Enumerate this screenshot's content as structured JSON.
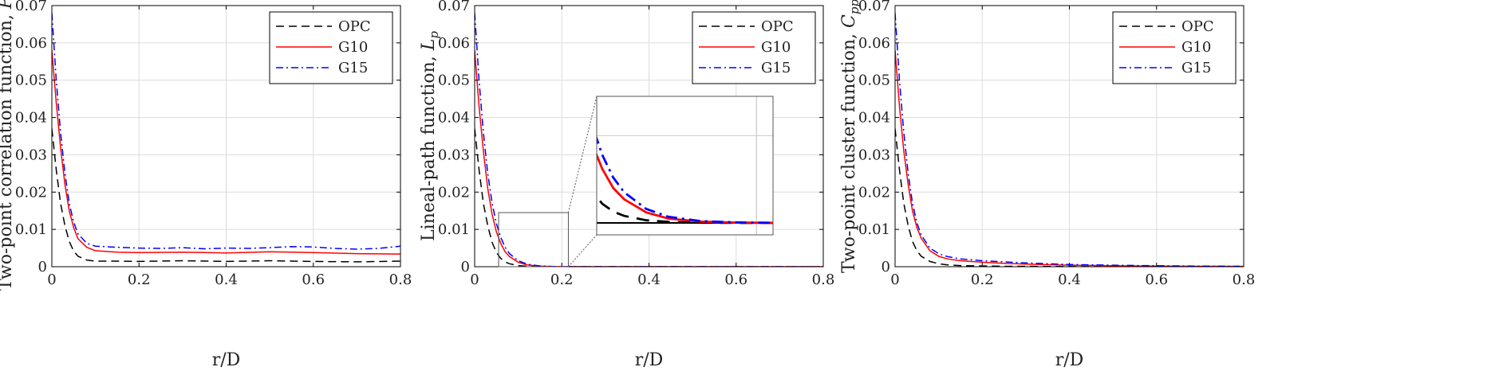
{
  "chart_data": [
    {
      "type": "line",
      "id": "left",
      "xlabel": "r/D",
      "ylabel": "Two-point correlation function, ",
      "ylabel_symbol": "P",
      "ylabel_subscript": "pp",
      "xlim": [
        0,
        0.8
      ],
      "ylim": [
        0,
        0.07
      ],
      "xticks": [
        0,
        0.2,
        0.4,
        0.6,
        0.8
      ],
      "xtick_labels": [
        "0",
        "0.2",
        "0.4",
        "0.6",
        "0.8"
      ],
      "yticks": [
        0,
        0.01,
        0.02,
        0.03,
        0.04,
        0.05,
        0.06,
        0.07
      ],
      "ytick_labels": [
        "0",
        "0.01",
        "0.02",
        "0.03",
        "0.04",
        "0.05",
        "0.06",
        "0.07"
      ],
      "grid": true,
      "legend": "top-right",
      "series": [
        {
          "name": "OPC",
          "color": "#000000",
          "dash": "dashed",
          "x": [
            0,
            0.01,
            0.02,
            0.03,
            0.04,
            0.05,
            0.06,
            0.08,
            0.1,
            0.15,
            0.2,
            0.3,
            0.4,
            0.5,
            0.6,
            0.7,
            0.8
          ],
          "y": [
            0.037,
            0.026,
            0.017,
            0.011,
            0.0068,
            0.0042,
            0.0028,
            0.0018,
            0.0015,
            0.0015,
            0.0014,
            0.0016,
            0.0014,
            0.0016,
            0.0014,
            0.0013,
            0.0015
          ]
        },
        {
          "name": "G10",
          "color": "#ff0000",
          "dash": "solid",
          "x": [
            0,
            0.01,
            0.02,
            0.03,
            0.04,
            0.05,
            0.06,
            0.08,
            0.1,
            0.15,
            0.2,
            0.3,
            0.4,
            0.5,
            0.6,
            0.7,
            0.8
          ],
          "y": [
            0.058,
            0.044,
            0.032,
            0.022,
            0.015,
            0.0105,
            0.0075,
            0.0052,
            0.0043,
            0.0039,
            0.0038,
            0.0039,
            0.0037,
            0.004,
            0.0038,
            0.0035,
            0.0034
          ]
        },
        {
          "name": "G15",
          "color": "#0000ff",
          "dash": "dashdot",
          "x": [
            0,
            0.01,
            0.02,
            0.03,
            0.04,
            0.05,
            0.06,
            0.08,
            0.1,
            0.15,
            0.2,
            0.25,
            0.3,
            0.35,
            0.4,
            0.45,
            0.5,
            0.55,
            0.6,
            0.65,
            0.7,
            0.75,
            0.8
          ],
          "y": [
            0.068,
            0.05,
            0.036,
            0.025,
            0.017,
            0.012,
            0.0088,
            0.0063,
            0.0055,
            0.0052,
            0.005,
            0.0049,
            0.0051,
            0.0048,
            0.005,
            0.0049,
            0.0051,
            0.0054,
            0.0053,
            0.0049,
            0.0047,
            0.0049,
            0.0055
          ]
        }
      ]
    },
    {
      "type": "line",
      "id": "middle",
      "xlabel": "r/D",
      "ylabel": "Lineal-path function, ",
      "ylabel_symbol": "L",
      "ylabel_subscript": "p",
      "xlim": [
        0,
        0.8
      ],
      "ylim": [
        0,
        0.07
      ],
      "xticks": [
        0,
        0.2,
        0.4,
        0.6,
        0.8
      ],
      "xtick_labels": [
        "0",
        "0.2",
        "0.4",
        "0.6",
        "0.8"
      ],
      "yticks": [
        0,
        0.01,
        0.02,
        0.03,
        0.04,
        0.05,
        0.06,
        0.07
      ],
      "ytick_labels": [
        "0",
        "0.01",
        "0.02",
        "0.03",
        "0.04",
        "0.05",
        "0.06",
        "0.07"
      ],
      "grid": true,
      "legend": "top-right",
      "inset": {
        "x_range": [
          0.055,
          0.215
        ],
        "y_range": [
          0,
          0.0145
        ]
      },
      "series": [
        {
          "name": "OPC",
          "color": "#000000",
          "dash": "dashed",
          "x": [
            0,
            0.01,
            0.02,
            0.03,
            0.04,
            0.05,
            0.06,
            0.07,
            0.08,
            0.1,
            0.12,
            0.15,
            0.18,
            0.2,
            0.25,
            0.3,
            0.4,
            0.5,
            0.6,
            0.7,
            0.8
          ],
          "y": [
            0.037,
            0.026,
            0.017,
            0.011,
            0.0065,
            0.0038,
            0.0022,
            0.0013,
            0.0008,
            0.0003,
            0.00012,
            3e-05,
            1e-05,
            0,
            0,
            0,
            0,
            0,
            0,
            0,
            0
          ]
        },
        {
          "name": "G10",
          "color": "#ff0000",
          "dash": "solid",
          "x": [
            0,
            0.01,
            0.02,
            0.03,
            0.04,
            0.05,
            0.06,
            0.07,
            0.08,
            0.1,
            0.12,
            0.15,
            0.18,
            0.2,
            0.25,
            0.3,
            0.4,
            0.5,
            0.6,
            0.7,
            0.8
          ],
          "y": [
            0.058,
            0.043,
            0.031,
            0.021,
            0.014,
            0.0093,
            0.0062,
            0.004,
            0.0027,
            0.0012,
            0.0005,
            0.00015,
            5e-05,
            2e-05,
            0,
            0,
            0,
            0,
            0,
            0,
            0
          ]
        },
        {
          "name": "G15",
          "color": "#0000ff",
          "dash": "dashdot",
          "x": [
            0,
            0.01,
            0.02,
            0.03,
            0.04,
            0.05,
            0.06,
            0.07,
            0.08,
            0.1,
            0.12,
            0.15,
            0.18,
            0.2,
            0.25,
            0.3,
            0.4,
            0.5,
            0.6,
            0.7,
            0.8
          ],
          "y": [
            0.068,
            0.05,
            0.036,
            0.025,
            0.017,
            0.0115,
            0.0078,
            0.0052,
            0.0035,
            0.0016,
            0.0007,
            0.0002,
            7e-05,
            3e-05,
            0,
            0,
            0,
            0,
            0,
            0,
            0
          ]
        }
      ]
    },
    {
      "type": "line",
      "id": "right",
      "xlabel": "r/D",
      "ylabel": "Two-point cluster function, ",
      "ylabel_symbol": "C",
      "ylabel_subscript": "pp",
      "xlim": [
        0,
        0.8
      ],
      "ylim": [
        0,
        0.07
      ],
      "xticks": [
        0,
        0.2,
        0.4,
        0.6,
        0.8
      ],
      "xtick_labels": [
        "0",
        "0.2",
        "0.4",
        "0.6",
        "0.8"
      ],
      "yticks": [
        0,
        0.01,
        0.02,
        0.03,
        0.04,
        0.05,
        0.06,
        0.07
      ],
      "ytick_labels": [
        "0",
        "0.01",
        "0.02",
        "0.03",
        "0.04",
        "0.05",
        "0.06",
        "0.07"
      ],
      "grid": true,
      "legend": "top-right",
      "series": [
        {
          "name": "OPC",
          "color": "#000000",
          "dash": "dashed",
          "x": [
            0,
            0.01,
            0.02,
            0.03,
            0.04,
            0.05,
            0.06,
            0.08,
            0.1,
            0.12,
            0.15,
            0.2,
            0.25,
            0.3,
            0.4,
            0.5,
            0.6,
            0.7,
            0.8
          ],
          "y": [
            0.037,
            0.026,
            0.017,
            0.011,
            0.0068,
            0.0043,
            0.0028,
            0.0014,
            0.0008,
            0.0005,
            0.0003,
            0.0002,
            0.0001,
            0.0001,
            5e-05,
            3e-05,
            2e-05,
            1e-05,
            0
          ]
        },
        {
          "name": "G10",
          "color": "#ff0000",
          "dash": "solid",
          "x": [
            0,
            0.01,
            0.02,
            0.03,
            0.04,
            0.05,
            0.06,
            0.08,
            0.1,
            0.12,
            0.15,
            0.2,
            0.25,
            0.3,
            0.4,
            0.5,
            0.6,
            0.7,
            0.8
          ],
          "y": [
            0.058,
            0.043,
            0.031,
            0.022,
            0.015,
            0.0105,
            0.0076,
            0.0043,
            0.0028,
            0.0021,
            0.0016,
            0.0012,
            0.0009,
            0.0007,
            0.0004,
            0.00025,
            0.00015,
            0.0001,
            8e-05
          ]
        },
        {
          "name": "G15",
          "color": "#0000ff",
          "dash": "dashdot",
          "x": [
            0,
            0.01,
            0.02,
            0.03,
            0.04,
            0.05,
            0.06,
            0.08,
            0.1,
            0.12,
            0.15,
            0.2,
            0.25,
            0.3,
            0.4,
            0.5,
            0.6,
            0.7,
            0.8
          ],
          "y": [
            0.068,
            0.05,
            0.036,
            0.025,
            0.017,
            0.0118,
            0.0085,
            0.005,
            0.0035,
            0.0027,
            0.0021,
            0.0016,
            0.0013,
            0.001,
            0.0006,
            0.0004,
            0.00025,
            0.00015,
            0.0001
          ]
        }
      ]
    }
  ]
}
